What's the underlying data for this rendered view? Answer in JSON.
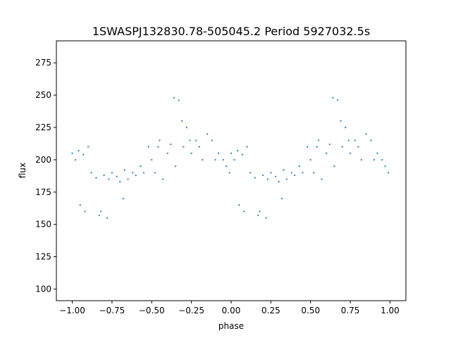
{
  "chart_data": {
    "type": "scatter",
    "title": "1SWASPJ132830.78-505045.2 Period 5927032.5s",
    "xlabel": "phase",
    "ylabel": "flux",
    "xlim": [
      -1.1,
      1.1
    ],
    "ylim": [
      91,
      292
    ],
    "xticks": [
      -1.0,
      -0.75,
      -0.5,
      -0.25,
      0.0,
      0.25,
      0.5,
      0.75,
      1.0
    ],
    "xtick_labels": [
      "−1.00",
      "−0.75",
      "−0.50",
      "−0.25",
      "0.00",
      "0.25",
      "0.50",
      "0.75",
      "1.00"
    ],
    "yticks": [
      100,
      125,
      150,
      175,
      200,
      225,
      250,
      275
    ],
    "ytick_labels": [
      "100",
      "125",
      "150",
      "175",
      "200",
      "225",
      "250",
      "275"
    ],
    "marker_color": "#1f77b4",
    "grid": false,
    "legend": "none",
    "series": [
      {
        "x": [
          -1.0,
          -0.98,
          -0.96,
          -0.95,
          -0.93,
          -0.92,
          -0.9,
          -0.88,
          -0.85,
          -0.83,
          -0.82,
          -0.8,
          -0.78,
          -0.77,
          -0.75,
          -0.72,
          -0.7,
          -0.68,
          -0.67,
          -0.65,
          -0.62,
          -0.6,
          -0.57,
          -0.55,
          -0.52,
          -0.5,
          -0.48,
          -0.46,
          -0.45,
          -0.43,
          -0.4,
          -0.38,
          -0.36,
          -0.35,
          -0.33,
          -0.31,
          -0.3,
          -0.28,
          -0.26,
          -0.25,
          -0.22,
          -0.2,
          -0.18,
          -0.15,
          -0.12,
          -0.1,
          -0.08,
          -0.05,
          -0.03,
          -0.01,
          0.0,
          0.02,
          0.04,
          0.05,
          0.07,
          0.08,
          0.1,
          0.12,
          0.15,
          0.17,
          0.18,
          0.2,
          0.22,
          0.23,
          0.25,
          0.28,
          0.3,
          0.32,
          0.33,
          0.35,
          0.38,
          0.4,
          0.43,
          0.45,
          0.48,
          0.5,
          0.52,
          0.54,
          0.55,
          0.57,
          0.6,
          0.62,
          0.64,
          0.65,
          0.67,
          0.69,
          0.7,
          0.72,
          0.74,
          0.75,
          0.78,
          0.8,
          0.82,
          0.85,
          0.88,
          0.9,
          0.92,
          0.95,
          0.97,
          0.99
        ],
        "y": [
          205,
          200,
          207,
          165,
          204,
          160,
          210,
          190,
          186,
          157,
          160,
          188,
          155,
          185,
          190,
          187,
          183,
          170,
          192,
          185,
          190,
          188,
          195,
          190,
          210,
          200,
          190,
          210,
          215,
          185,
          205,
          212,
          248,
          195,
          246,
          230,
          210,
          225,
          215,
          205,
          215,
          210,
          200,
          220,
          215,
          200,
          205,
          200,
          195,
          190,
          205,
          200,
          207,
          165,
          204,
          160,
          210,
          190,
          186,
          157,
          160,
          188,
          155,
          185,
          190,
          187,
          183,
          170,
          192,
          185,
          190,
          188,
          195,
          190,
          210,
          200,
          190,
          210,
          215,
          185,
          205,
          212,
          248,
          195,
          246,
          230,
          210,
          225,
          215,
          205,
          215,
          210,
          200,
          220,
          215,
          200,
          205,
          200,
          195,
          190
        ]
      }
    ]
  }
}
